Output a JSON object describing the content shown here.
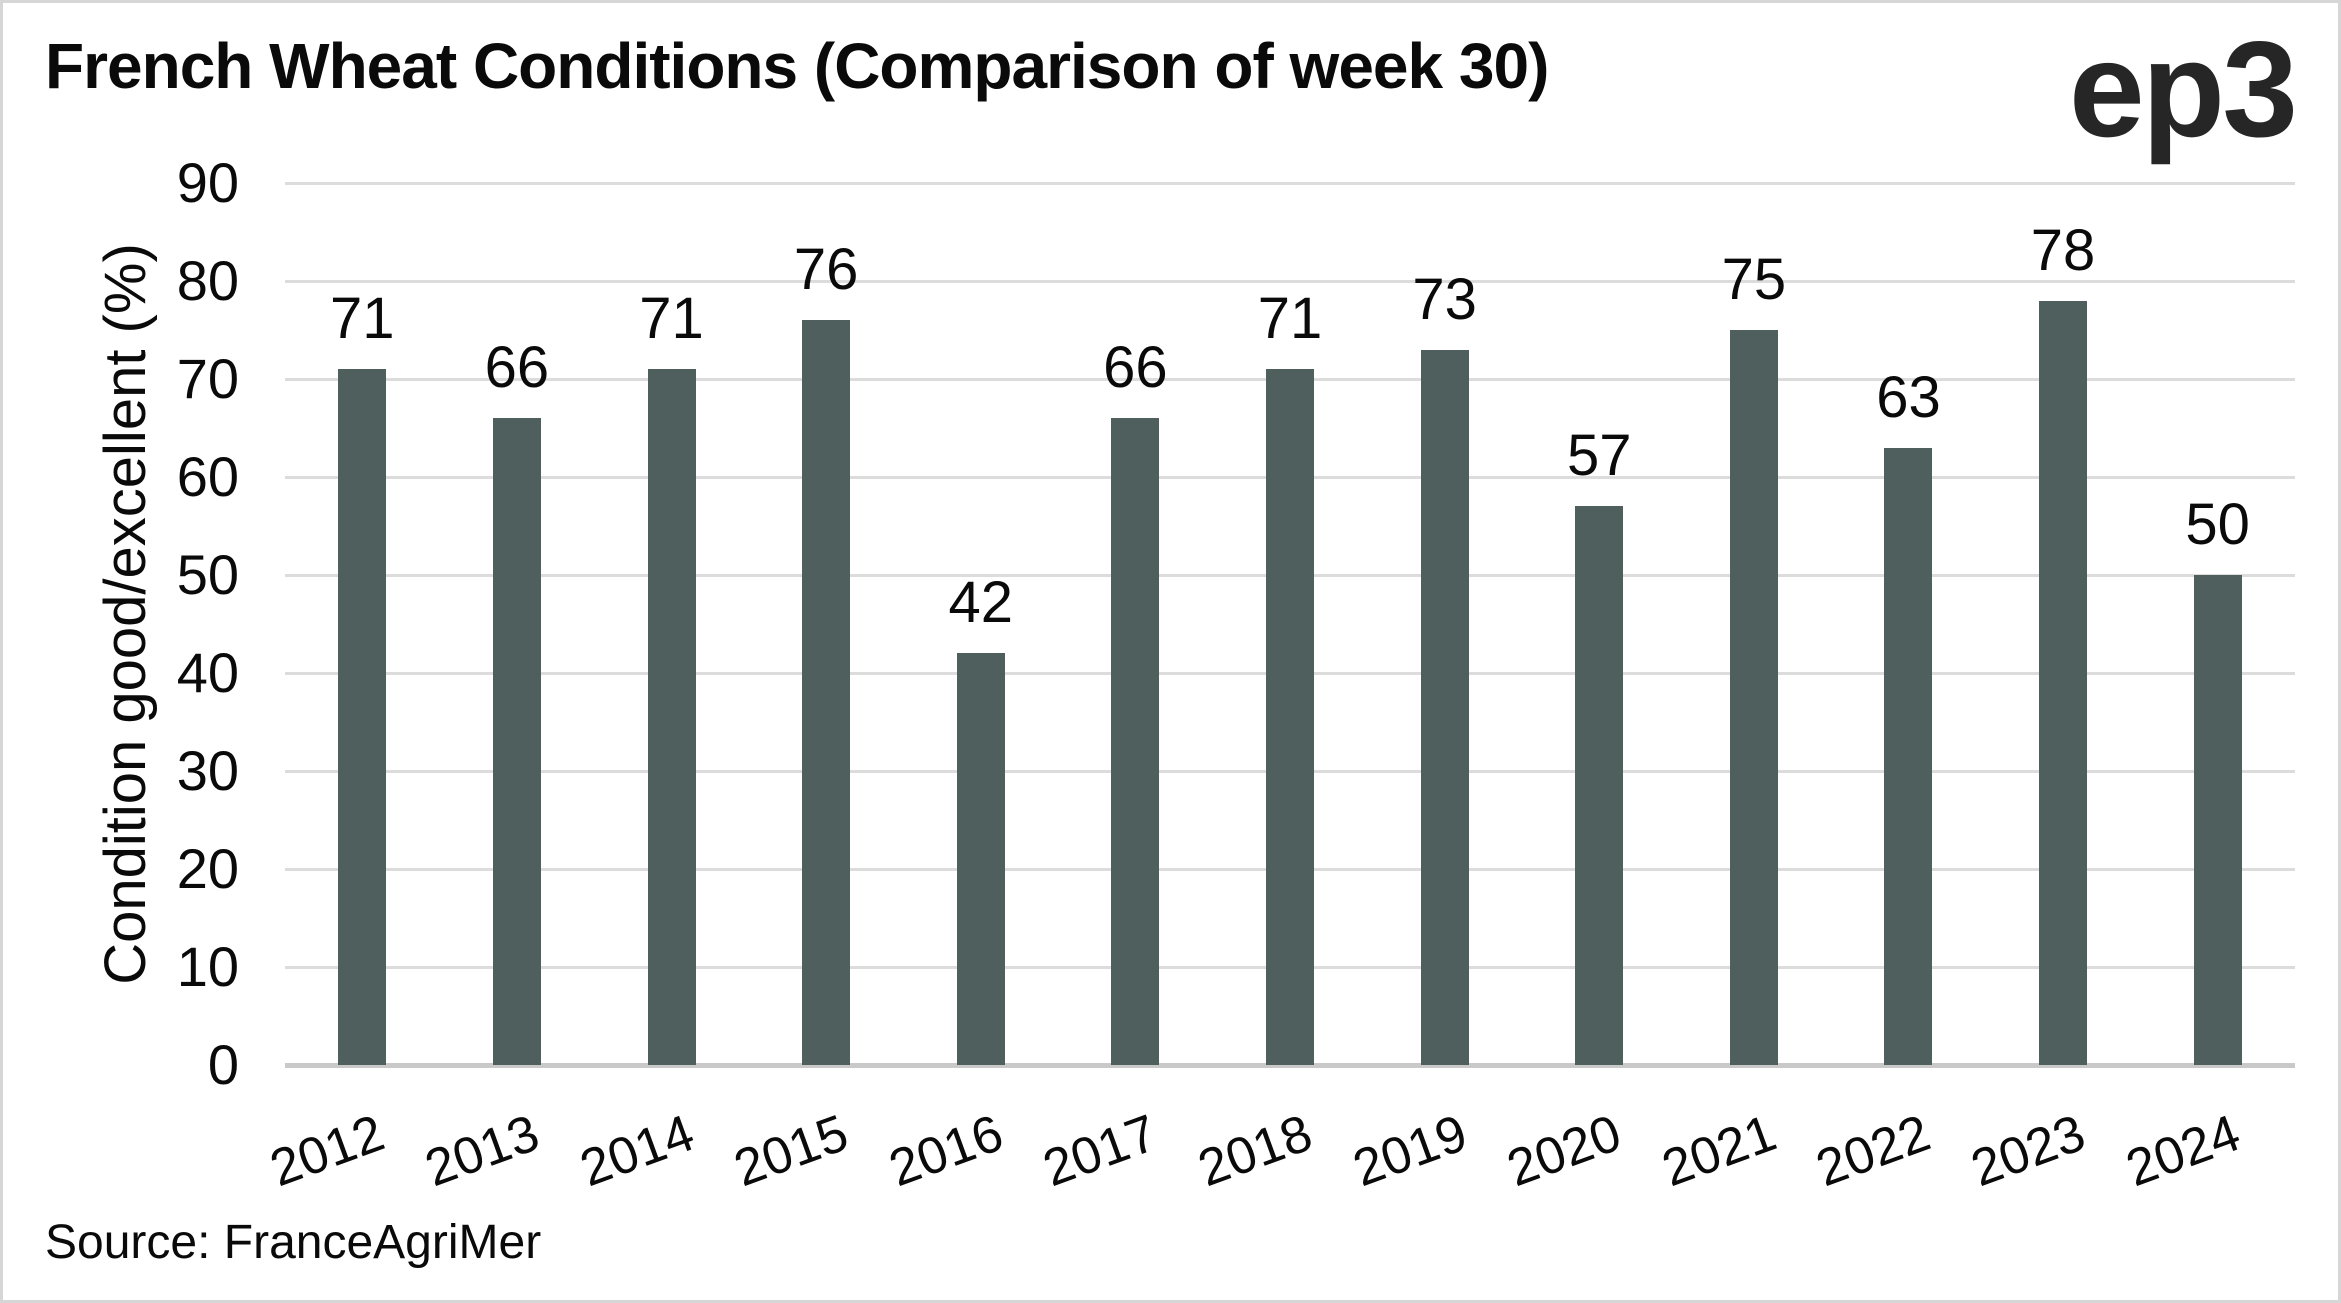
{
  "header": {
    "title": "French Wheat Conditions (Comparison of week 30)",
    "logo_text": "ep3"
  },
  "footer": {
    "source": "Source: FranceAgriMer"
  },
  "chart_data": {
    "type": "bar",
    "title": "French Wheat Conditions (Comparison of week 30)",
    "categories": [
      "2012",
      "2013",
      "2014",
      "2015",
      "2016",
      "2017",
      "2018",
      "2019",
      "2020",
      "2021",
      "2022",
      "2023",
      "2024"
    ],
    "values": [
      71,
      66,
      71,
      76,
      42,
      66,
      71,
      73,
      57,
      75,
      63,
      78,
      50
    ],
    "xlabel": "",
    "ylabel": "Condition good/excellent (%)",
    "ylim": [
      0,
      90
    ],
    "yticks": [
      0,
      10,
      20,
      30,
      40,
      50,
      60,
      70,
      80,
      90
    ],
    "grid": true,
    "legend_position": "none",
    "value_labels_shown": true,
    "x_tick_rotation_deg": -20,
    "bar_color": "#4e5f5e",
    "gridline_color": "#dcdcdc",
    "axis_line_color": "#c9c9c9",
    "text_color": "#0a0a0a",
    "source": "Source: FranceAgriMer"
  }
}
